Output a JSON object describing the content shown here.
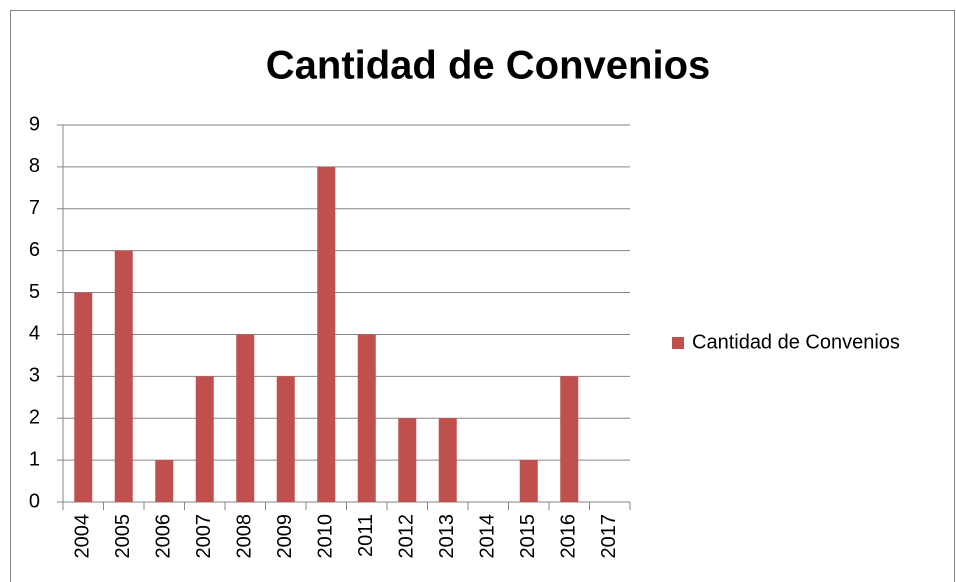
{
  "chart_data": {
    "type": "bar",
    "title": "Cantidad de Convenios",
    "categories": [
      "2004",
      "2005",
      "2006",
      "2007",
      "2008",
      "2009",
      "2010",
      "2011",
      "2012",
      "2013",
      "2014",
      "2015",
      "2016",
      "2017"
    ],
    "series": [
      {
        "name": "Cantidad de Convenios",
        "color": "#c0504d",
        "values": [
          5,
          6,
          1,
          3,
          4,
          3,
          8,
          4,
          2,
          2,
          0,
          1,
          3,
          0
        ]
      }
    ],
    "ylim": [
      0,
      9
    ],
    "yticks": [
      0,
      1,
      2,
      3,
      4,
      5,
      6,
      7,
      8,
      9
    ],
    "grid": true,
    "legend": "right"
  }
}
